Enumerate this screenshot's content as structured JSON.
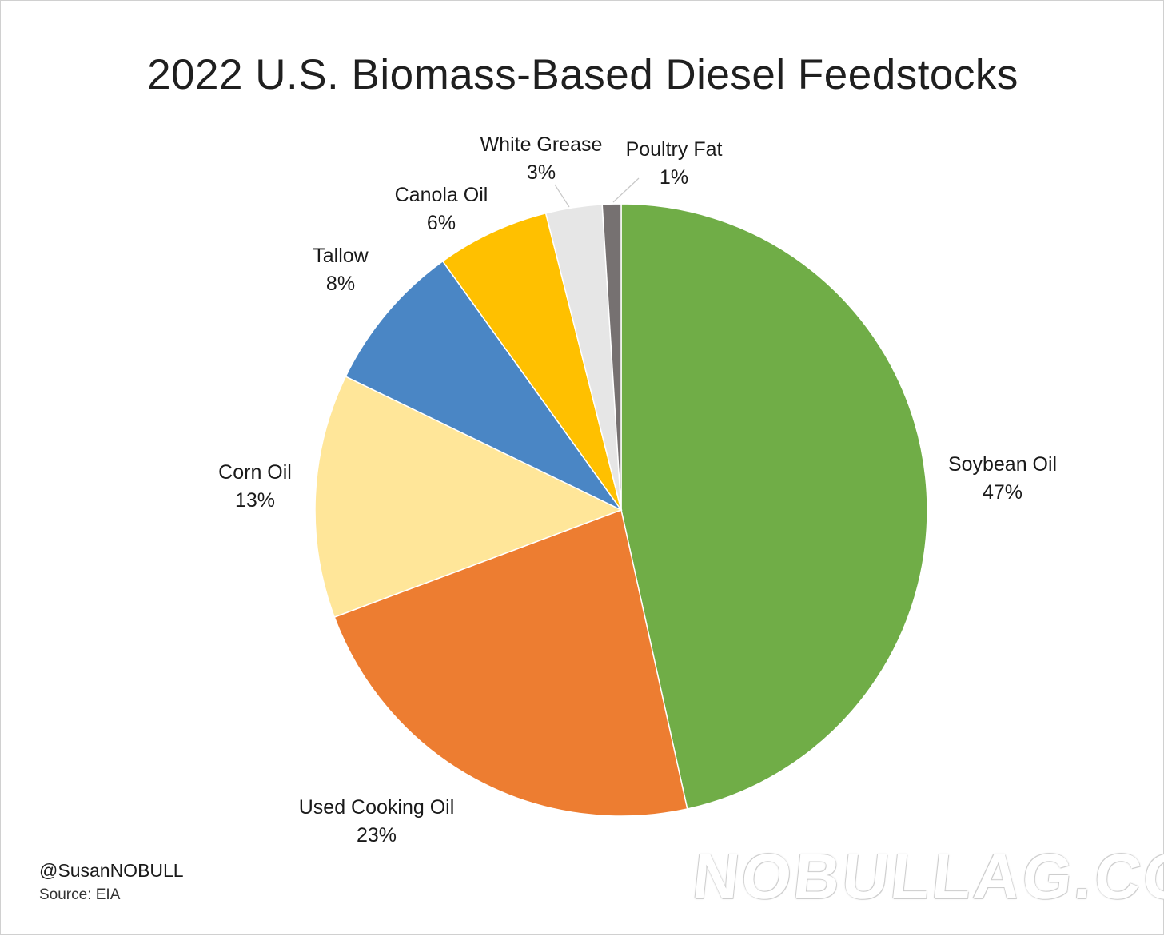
{
  "chart_data": {
    "type": "pie",
    "title": "2022 U.S. Biomass-Based Diesel Feedstocks",
    "slices": [
      {
        "label": "Soybean Oil",
        "value": 47,
        "value_label": "47%",
        "color": "#70AD47"
      },
      {
        "label": "Used Cooking Oil",
        "value": 23,
        "value_label": "23%",
        "color": "#ED7D31"
      },
      {
        "label": "Corn Oil",
        "value": 13,
        "value_label": "13%",
        "color": "#FFE699"
      },
      {
        "label": "Tallow",
        "value": 8,
        "value_label": "8%",
        "color": "#4A86C5"
      },
      {
        "label": "Canola Oil",
        "value": 6,
        "value_label": "6%",
        "color": "#FFC000"
      },
      {
        "label": "White Grease",
        "value": 3,
        "value_label": "3%",
        "color": "#E6E6E6"
      },
      {
        "label": "Poultry Fat",
        "value": 1,
        "value_label": "1%",
        "color": "#767171"
      }
    ],
    "start_angle_deg": 0,
    "direction": "clockwise"
  },
  "footer": {
    "handle": "@SusanNOBULL",
    "source": "Source: EIA"
  },
  "watermark": "NOBULLAG.COM"
}
